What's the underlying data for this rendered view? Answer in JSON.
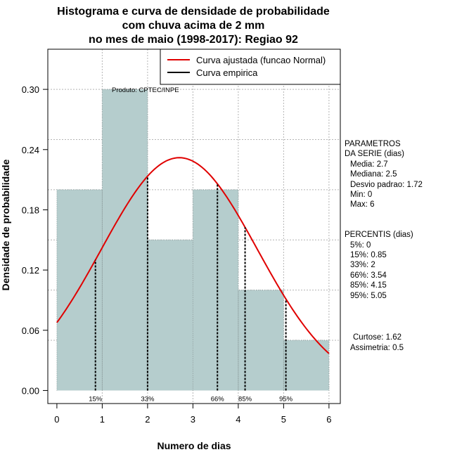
{
  "chart_data": {
    "type": "bar",
    "title_lines": [
      "Histograma e curva de densidade de probabilidade",
      "com chuva acima de 2 mm",
      "no mes de maio (1998-2017): Regiao 92"
    ],
    "xlabel": "Numero de dias",
    "ylabel": "Densidade de probabilidade",
    "xlim": [
      -0.2,
      6.25
    ],
    "ylim": [
      -0.013,
      0.34
    ],
    "x_ticks": [
      0,
      1,
      2,
      3,
      4,
      5,
      6
    ],
    "x_tick_labels": [
      "0",
      "1",
      "2",
      "3",
      "4",
      "5",
      "6"
    ],
    "y_ticks": [
      0.0,
      0.06,
      0.12,
      0.18,
      0.24,
      0.3
    ],
    "y_tick_labels": [
      "0.00",
      "0.06",
      "0.12",
      "0.18",
      "0.24",
      "0.30"
    ],
    "histogram": {
      "bins": [
        [
          0,
          1
        ],
        [
          1,
          2
        ],
        [
          2,
          3
        ],
        [
          3,
          4
        ],
        [
          4,
          5
        ],
        [
          5,
          6
        ]
      ],
      "values": [
        0.2,
        0.3,
        0.15,
        0.2,
        0.1,
        0.05
      ],
      "fill": "#b5cdcd"
    },
    "normal_fit": {
      "mean": 2.7,
      "sd": 1.72,
      "x_min": 0,
      "x_max": 6,
      "color": "#e00000"
    },
    "legend": [
      {
        "label": "Curva ajustada (funcao Normal)",
        "color": "#e00000"
      },
      {
        "label": "Curva empirica",
        "color": "#000000"
      }
    ],
    "percentile_lines": [
      {
        "label": "15%",
        "x": 0.85
      },
      {
        "label": "33%",
        "x": 2
      },
      {
        "label": "66%",
        "x": 3.54
      },
      {
        "label": "85%",
        "x": 4.15
      },
      {
        "label": "95%",
        "x": 5.05
      }
    ],
    "credit": "Produto: CPTEC/INPE",
    "side_panel": {
      "params_title": [
        "PARAMETROS",
        "DA SERIE (dias)"
      ],
      "params": [
        "Media: 2.7",
        "Mediana: 2.5",
        "Desvio padrao: 1.72",
        "Min: 0",
        "Max: 6"
      ],
      "percentis_title": "PERCENTIS (dias)",
      "percentis": [
        "5%: 0",
        "15%: 0.85",
        "33%: 2",
        "66%: 3.54",
        "85%: 4.15",
        "95%: 5.05"
      ],
      "shape": [
        "Curtose: 1.62",
        "Assimetria: 0.5"
      ]
    }
  }
}
